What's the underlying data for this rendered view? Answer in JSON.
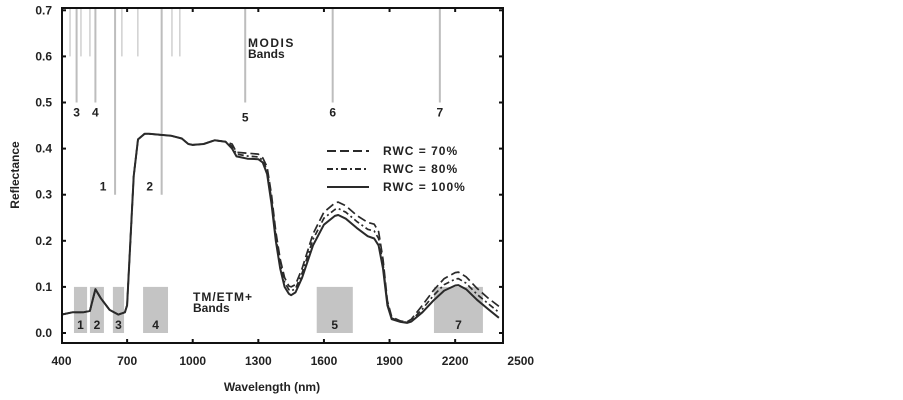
{
  "chart_data": {
    "type": "line",
    "xlabel": "Wavelength (nm)",
    "ylabel": "Reflectance",
    "xlim": [
      400,
      2420
    ],
    "ylim": [
      -0.022,
      0.705
    ],
    "x_ticks": [
      400,
      700,
      1000,
      1300,
      1600,
      1900,
      2200,
      2500
    ],
    "y_ticks": [
      "0.0",
      "0.1",
      "0.2",
      "0.3",
      "0.4",
      "0.5",
      "0.6",
      "0.7"
    ],
    "grid": false,
    "legend_position": "upper-right (inside)",
    "x": [
      400,
      450,
      500,
      530,
      555,
      580,
      620,
      660,
      690,
      700,
      715,
      730,
      750,
      780,
      800,
      850,
      900,
      950,
      980,
      1000,
      1050,
      1100,
      1150,
      1180,
      1200,
      1250,
      1300,
      1320,
      1340,
      1360,
      1380,
      1400,
      1420,
      1440,
      1450,
      1470,
      1500,
      1550,
      1600,
      1650,
      1665,
      1700,
      1750,
      1800,
      1830,
      1850,
      1870,
      1890,
      1910,
      1950,
      1980,
      2000,
      2050,
      2100,
      2150,
      2200,
      2215,
      2250,
      2300,
      2350,
      2400
    ],
    "series": [
      {
        "name": "RWC = 70%",
        "style": "dashed",
        "values": [
          0.04,
          0.045,
          0.045,
          0.048,
          0.095,
          0.075,
          0.05,
          0.04,
          0.045,
          0.06,
          0.2,
          0.34,
          0.42,
          0.432,
          0.432,
          0.43,
          0.428,
          0.422,
          0.41,
          0.408,
          0.41,
          0.418,
          0.415,
          0.41,
          0.392,
          0.39,
          0.388,
          0.38,
          0.36,
          0.3,
          0.22,
          0.16,
          0.12,
          0.102,
          0.1,
          0.105,
          0.14,
          0.215,
          0.262,
          0.282,
          0.284,
          0.276,
          0.255,
          0.24,
          0.236,
          0.22,
          0.16,
          0.07,
          0.035,
          0.026,
          0.024,
          0.03,
          0.06,
          0.092,
          0.118,
          0.131,
          0.132,
          0.122,
          0.097,
          0.076,
          0.058
        ]
      },
      {
        "name": "RWC = 80%",
        "style": "dash-dot",
        "values": [
          0.04,
          0.045,
          0.045,
          0.048,
          0.095,
          0.075,
          0.05,
          0.04,
          0.045,
          0.06,
          0.2,
          0.34,
          0.42,
          0.432,
          0.432,
          0.43,
          0.428,
          0.422,
          0.41,
          0.408,
          0.41,
          0.418,
          0.415,
          0.405,
          0.388,
          0.384,
          0.382,
          0.375,
          0.352,
          0.29,
          0.21,
          0.15,
          0.11,
          0.094,
          0.091,
          0.096,
          0.13,
          0.203,
          0.249,
          0.268,
          0.27,
          0.262,
          0.242,
          0.225,
          0.221,
          0.205,
          0.15,
          0.065,
          0.032,
          0.025,
          0.023,
          0.027,
          0.052,
          0.081,
          0.105,
          0.117,
          0.118,
          0.108,
          0.084,
          0.064,
          0.045
        ]
      },
      {
        "name": "RWC = 100%",
        "style": "solid",
        "values": [
          0.04,
          0.045,
          0.045,
          0.048,
          0.095,
          0.075,
          0.05,
          0.04,
          0.045,
          0.06,
          0.2,
          0.34,
          0.42,
          0.432,
          0.432,
          0.43,
          0.428,
          0.422,
          0.41,
          0.408,
          0.41,
          0.418,
          0.415,
          0.4,
          0.383,
          0.378,
          0.377,
          0.37,
          0.345,
          0.28,
          0.2,
          0.14,
          0.1,
          0.085,
          0.082,
          0.088,
          0.12,
          0.19,
          0.235,
          0.254,
          0.256,
          0.248,
          0.228,
          0.21,
          0.205,
          0.19,
          0.14,
          0.06,
          0.03,
          0.024,
          0.022,
          0.025,
          0.045,
          0.07,
          0.092,
          0.103,
          0.104,
          0.095,
          0.072,
          0.052,
          0.033
        ]
      }
    ],
    "modis": {
      "label_line1": "MODIS",
      "label_line2": "Bands",
      "bands": [
        {
          "label": "3",
          "wavelength": 469,
          "bottom": 0.5,
          "label_y": 0.48
        },
        {
          "label": "4",
          "wavelength": 555,
          "bottom": 0.5,
          "label_y": 0.48
        },
        {
          "label": "1",
          "wavelength": 645,
          "bottom": 0.3,
          "label_y": 0.32
        },
        {
          "label": "2",
          "wavelength": 858,
          "bottom": 0.3,
          "label_y": 0.32
        },
        {
          "label": "5",
          "wavelength": 1240,
          "bottom": 0.5,
          "label_y": 0.47
        },
        {
          "label": "6",
          "wavelength": 1640,
          "bottom": 0.5,
          "label_y": 0.48
        },
        {
          "label": "7",
          "wavelength": 2130,
          "bottom": 0.5,
          "label_y": 0.48
        }
      ],
      "minor_bands": [
        439,
        489,
        530,
        676,
        749,
        905,
        941
      ],
      "minor_bottom": 0.6
    },
    "tm": {
      "label_line1": "TM/ETM+",
      "label_line2": "Bands",
      "bands": [
        {
          "label": "1",
          "start": 457,
          "end": 517
        },
        {
          "label": "2",
          "start": 530,
          "end": 594
        },
        {
          "label": "3",
          "start": 635,
          "end": 686
        },
        {
          "label": "4",
          "start": 773,
          "end": 887
        },
        {
          "label": "5",
          "start": 1567,
          "end": 1732
        },
        {
          "label": "7",
          "start": 2103,
          "end": 2327
        }
      ],
      "top": 0.1
    },
    "colors": {
      "curve": "#2a2a2a",
      "band_fill": "#c4c4c4",
      "modis_line": "#bdbdbd",
      "frame": "#111111"
    }
  }
}
